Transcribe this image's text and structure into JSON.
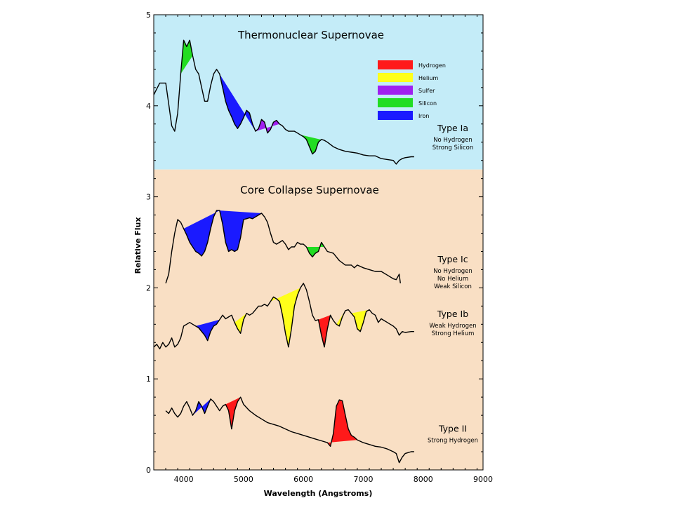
{
  "chart_data": {
    "type": "line",
    "xlabel": "Wavelength (Angstroms)",
    "ylabel": "Relative Flux",
    "xlim": [
      3500,
      9000
    ],
    "ylim": [
      0,
      5
    ],
    "xticks": [
      "4000",
      "5000",
      "6000",
      "7000",
      "8000",
      "9000"
    ],
    "yticks": [
      "0",
      "1",
      "2",
      "3",
      "4",
      "5"
    ],
    "panels": [
      {
        "title": "Thermonuclear Supernovae",
        "y_range": [
          3.3,
          5
        ],
        "color": "#c4ecf8"
      },
      {
        "title": "Core Collapse Supernovae",
        "y_range": [
          0,
          3.3
        ],
        "color": "#f9dfc4"
      }
    ],
    "legend": {
      "position": "upper right of top panel",
      "items": [
        {
          "label": "Hydrogen",
          "color": "#ff1a1a"
        },
        {
          "label": "Helium",
          "color": "#ffff1a"
        },
        {
          "label": "Sulfer",
          "color": "#a020f0"
        },
        {
          "label": "Silicon",
          "color": "#22dd22"
        },
        {
          "label": "Iron",
          "color": "#1a1aff"
        }
      ]
    },
    "series": [
      {
        "name": "Type Ia",
        "description": [
          "No Hydrogen",
          "Strong Silicon"
        ],
        "label_y": 3.72,
        "x": [
          3500,
          3600,
          3700,
          3750,
          3800,
          3850,
          3900,
          3950,
          4000,
          4050,
          4100,
          4150,
          4200,
          4250,
          4300,
          4350,
          4400,
          4450,
          4500,
          4550,
          4600,
          4650,
          4700,
          4750,
          4800,
          4850,
          4900,
          4950,
          5000,
          5050,
          5100,
          5150,
          5200,
          5250,
          5300,
          5350,
          5400,
          5450,
          5500,
          5550,
          5600,
          5650,
          5700,
          5750,
          5800,
          5850,
          5900,
          5950,
          6000,
          6050,
          6100,
          6150,
          6200,
          6250,
          6300,
          6350,
          6400,
          6500,
          6600,
          6700,
          6800,
          6900,
          7000,
          7100,
          7200,
          7300,
          7400,
          7500,
          7550,
          7600,
          7650,
          7700,
          7800,
          7850
        ],
        "y": [
          4.12,
          4.25,
          4.25,
          4.02,
          3.78,
          3.72,
          3.92,
          4.35,
          4.72,
          4.65,
          4.72,
          4.55,
          4.4,
          4.35,
          4.2,
          4.05,
          4.05,
          4.22,
          4.35,
          4.4,
          4.35,
          4.2,
          4.05,
          3.95,
          3.88,
          3.8,
          3.75,
          3.8,
          3.87,
          3.95,
          3.92,
          3.8,
          3.72,
          3.75,
          3.85,
          3.82,
          3.7,
          3.74,
          3.82,
          3.84,
          3.8,
          3.78,
          3.74,
          3.72,
          3.72,
          3.72,
          3.7,
          3.68,
          3.66,
          3.63,
          3.55,
          3.47,
          3.5,
          3.6,
          3.63,
          3.62,
          3.6,
          3.55,
          3.52,
          3.5,
          3.49,
          3.48,
          3.46,
          3.45,
          3.45,
          3.42,
          3.41,
          3.4,
          3.36,
          3.4,
          3.42,
          3.43,
          3.44,
          3.44
        ],
        "features": [
          {
            "element": "Silicon",
            "x_range": [
              3950,
              4150
            ],
            "x_min": 4050
          },
          {
            "element": "Iron",
            "x_range": [
              4550,
              5200
            ],
            "x_min": 5000
          },
          {
            "element": "Sulfer",
            "x_range": [
              5200,
              5600
            ],
            "x_min": 5300
          },
          {
            "element": "Silicon",
            "x_range": [
              5950,
              6350
            ],
            "x_min": 6150
          }
        ]
      },
      {
        "name": "Type Ic",
        "description": [
          "No Hydrogen",
          "No Helium",
          "Weak Silicon"
        ],
        "label_y": 2.28,
        "x": [
          3700,
          3750,
          3800,
          3850,
          3900,
          3950,
          4000,
          4050,
          4100,
          4150,
          4200,
          4250,
          4300,
          4350,
          4400,
          4450,
          4500,
          4550,
          4600,
          4650,
          4700,
          4750,
          4800,
          4850,
          4900,
          4950,
          5000,
          5050,
          5100,
          5150,
          5200,
          5250,
          5300,
          5350,
          5400,
          5450,
          5500,
          5550,
          5600,
          5650,
          5700,
          5750,
          5800,
          5850,
          5900,
          5950,
          6000,
          6050,
          6100,
          6150,
          6200,
          6250,
          6300,
          6350,
          6400,
          6500,
          6600,
          6700,
          6800,
          6850,
          6900,
          7000,
          7100,
          7200,
          7300,
          7400,
          7500,
          7550,
          7600,
          7620
        ],
        "y": [
          2.05,
          2.15,
          2.4,
          2.6,
          2.75,
          2.72,
          2.65,
          2.58,
          2.5,
          2.45,
          2.4,
          2.38,
          2.35,
          2.4,
          2.5,
          2.65,
          2.78,
          2.85,
          2.85,
          2.7,
          2.5,
          2.4,
          2.42,
          2.4,
          2.42,
          2.55,
          2.75,
          2.76,
          2.77,
          2.76,
          2.78,
          2.8,
          2.82,
          2.78,
          2.72,
          2.6,
          2.5,
          2.48,
          2.5,
          2.52,
          2.48,
          2.42,
          2.45,
          2.45,
          2.5,
          2.48,
          2.48,
          2.45,
          2.38,
          2.34,
          2.38,
          2.4,
          2.5,
          2.45,
          2.4,
          2.38,
          2.3,
          2.25,
          2.25,
          2.22,
          2.25,
          2.22,
          2.2,
          2.18,
          2.18,
          2.14,
          2.1,
          2.09,
          2.15,
          2.05
        ],
        "features": [
          {
            "element": "Iron",
            "x_range": [
              4000,
              4600
            ],
            "x_min": 4350
          },
          {
            "element": "Iron",
            "x_range": [
              4600,
              5300
            ],
            "x_min": 4850
          },
          {
            "element": "Silicon",
            "x_range": [
              6050,
              6350
            ],
            "x_min": 6200
          }
        ]
      },
      {
        "name": "Type Ib",
        "description": [
          "Weak Hydrogen",
          "Strong Helium"
        ],
        "label_y": 1.68,
        "x": [
          3500,
          3550,
          3600,
          3650,
          3700,
          3750,
          3800,
          3850,
          3900,
          3950,
          4000,
          4050,
          4100,
          4150,
          4200,
          4250,
          4300,
          4350,
          4400,
          4450,
          4500,
          4550,
          4600,
          4650,
          4700,
          4750,
          4800,
          4850,
          4900,
          4950,
          5000,
          5050,
          5100,
          5150,
          5200,
          5250,
          5300,
          5350,
          5400,
          5450,
          5500,
          5550,
          5600,
          5650,
          5700,
          5750,
          5800,
          5850,
          5900,
          5950,
          6000,
          6050,
          6100,
          6150,
          6200,
          6250,
          6300,
          6350,
          6400,
          6450,
          6500,
          6550,
          6600,
          6650,
          6700,
          6750,
          6800,
          6850,
          6900,
          6950,
          7000,
          7050,
          7100,
          7150,
          7200,
          7250,
          7300,
          7350,
          7400,
          7450,
          7500,
          7550,
          7600,
          7650,
          7700,
          7800,
          7850
        ],
        "y": [
          1.35,
          1.38,
          1.33,
          1.4,
          1.35,
          1.38,
          1.45,
          1.35,
          1.38,
          1.45,
          1.58,
          1.6,
          1.62,
          1.6,
          1.58,
          1.56,
          1.52,
          1.48,
          1.42,
          1.52,
          1.58,
          1.6,
          1.65,
          1.7,
          1.66,
          1.68,
          1.7,
          1.62,
          1.55,
          1.5,
          1.65,
          1.72,
          1.7,
          1.72,
          1.76,
          1.8,
          1.8,
          1.82,
          1.8,
          1.85,
          1.9,
          1.88,
          1.85,
          1.7,
          1.5,
          1.35,
          1.55,
          1.8,
          1.92,
          2.0,
          2.05,
          1.98,
          1.85,
          1.7,
          1.64,
          1.65,
          1.48,
          1.35,
          1.55,
          1.7,
          1.64,
          1.6,
          1.58,
          1.68,
          1.75,
          1.76,
          1.72,
          1.68,
          1.55,
          1.52,
          1.62,
          1.74,
          1.76,
          1.72,
          1.7,
          1.62,
          1.66,
          1.64,
          1.62,
          1.6,
          1.58,
          1.55,
          1.48,
          1.52,
          1.51,
          1.52,
          1.52
        ],
        "features": [
          {
            "element": "Iron",
            "x_range": [
              4200,
              4600
            ],
            "x_min": 4450
          },
          {
            "element": "Helium",
            "x_range": [
              4850,
              5050
            ],
            "x_min": 4950
          },
          {
            "element": "Helium",
            "x_range": [
              5450,
              5950
            ],
            "x_min": 5750
          },
          {
            "element": "Hydrogen",
            "x_range": [
              6250,
              6450
            ],
            "x_min": 6350
          },
          {
            "element": "Helium",
            "x_range": [
              6550,
              6700
            ],
            "x_min": 6600
          },
          {
            "element": "Helium",
            "x_range": [
              6800,
              7100
            ],
            "x_min": 6950
          }
        ]
      },
      {
        "name": "Type II",
        "description": [
          "Strong Hydrogen"
        ],
        "label_y": 0.42,
        "x": [
          3700,
          3750,
          3800,
          3850,
          3900,
          3950,
          4000,
          4050,
          4100,
          4150,
          4200,
          4250,
          4300,
          4350,
          4400,
          4450,
          4500,
          4550,
          4600,
          4650,
          4700,
          4750,
          4800,
          4850,
          4900,
          4950,
          5000,
          5100,
          5200,
          5300,
          5400,
          5500,
          5600,
          5700,
          5800,
          5900,
          6000,
          6100,
          6200,
          6300,
          6400,
          6450,
          6500,
          6550,
          6600,
          6650,
          6700,
          6750,
          6800,
          6850,
          6900,
          7000,
          7100,
          7200,
          7300,
          7400,
          7500,
          7550,
          7600,
          7650,
          7700,
          7800,
          7850
        ],
        "y": [
          0.65,
          0.62,
          0.68,
          0.62,
          0.58,
          0.62,
          0.7,
          0.75,
          0.68,
          0.6,
          0.65,
          0.75,
          0.7,
          0.62,
          0.7,
          0.78,
          0.75,
          0.7,
          0.65,
          0.7,
          0.72,
          0.65,
          0.45,
          0.65,
          0.75,
          0.8,
          0.72,
          0.65,
          0.6,
          0.56,
          0.52,
          0.5,
          0.48,
          0.45,
          0.42,
          0.4,
          0.38,
          0.36,
          0.34,
          0.32,
          0.3,
          0.26,
          0.4,
          0.7,
          0.77,
          0.76,
          0.6,
          0.45,
          0.38,
          0.36,
          0.33,
          0.3,
          0.28,
          0.26,
          0.25,
          0.23,
          0.2,
          0.18,
          0.08,
          0.14,
          0.18,
          0.2,
          0.2
        ],
        "features": [
          {
            "element": "Iron",
            "x_range": [
              4150,
              4450
            ],
            "x_min": 4300
          },
          {
            "element": "Hydrogen",
            "x_range": [
              4700,
              4950
            ],
            "x_min": 4850
          },
          {
            "element": "Hydrogen",
            "x_range": [
              6400,
              6900
            ],
            "x_min": 6650,
            "emission": true
          }
        ]
      }
    ]
  }
}
